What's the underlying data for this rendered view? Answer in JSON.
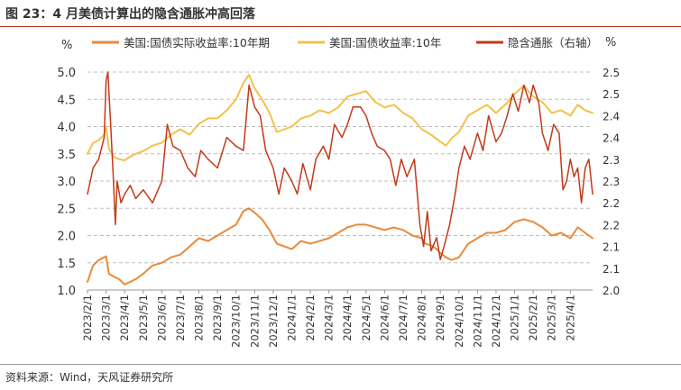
{
  "figure": {
    "title": "图 23：4 月美债计算出的隐含通胀冲高回落",
    "source": "资料来源：Wind，天风证券研究所"
  },
  "chart_data": {
    "type": "line",
    "left_axis": {
      "unit": "%",
      "range": [
        1.0,
        5.0
      ],
      "ticks": [
        "1.0",
        "1.5",
        "2.0",
        "2.5",
        "3.0",
        "3.5",
        "4.0",
        "4.5",
        "5.0"
      ]
    },
    "right_axis": {
      "unit": "%",
      "range": [
        2.0,
        2.5
      ],
      "ticks": [
        "2.0",
        "2.1",
        "2.1",
        "2.2",
        "2.2",
        "2.3",
        "2.3",
        "2.4",
        "2.4",
        "2.5",
        "2.5"
      ]
    },
    "x_range_months": [
      0,
      27.2
    ],
    "x_ticks": [
      {
        "t": 0,
        "label": "2023/2/1"
      },
      {
        "t": 1,
        "label": "2023/3/1"
      },
      {
        "t": 2,
        "label": "2023/4/1"
      },
      {
        "t": 3,
        "label": "2023/5/1"
      },
      {
        "t": 4,
        "label": "2023/6/1"
      },
      {
        "t": 5,
        "label": "2023/7/1"
      },
      {
        "t": 6,
        "label": "2023/8/1"
      },
      {
        "t": 7,
        "label": "2023/9/1"
      },
      {
        "t": 8,
        "label": "2023/10/1"
      },
      {
        "t": 9,
        "label": "2023/11/1"
      },
      {
        "t": 10,
        "label": "2023/12/1"
      },
      {
        "t": 11,
        "label": "2024/1/1"
      },
      {
        "t": 12,
        "label": "2024/2/1"
      },
      {
        "t": 13,
        "label": "2024/3/1"
      },
      {
        "t": 14,
        "label": "2024/4/1"
      },
      {
        "t": 15,
        "label": "2024/5/1"
      },
      {
        "t": 16,
        "label": "2024/6/1"
      },
      {
        "t": 17,
        "label": "2024/7/1"
      },
      {
        "t": 18,
        "label": "2024/8/1"
      },
      {
        "t": 19,
        "label": "2024/9/1"
      },
      {
        "t": 20,
        "label": "2024/10/1"
      },
      {
        "t": 21,
        "label": "2024/11/1"
      },
      {
        "t": 22,
        "label": "2024/12/1"
      },
      {
        "t": 23,
        "label": "2025/1/1"
      },
      {
        "t": 24,
        "label": "2025/2/1"
      },
      {
        "t": 25,
        "label": "2025/3/1"
      },
      {
        "t": 26,
        "label": "2025/4/1"
      }
    ],
    "grid": "horizontal dashed",
    "legend_position": "top",
    "series": [
      {
        "name": "美国:国债实际收益率:10年期",
        "axis": "left",
        "color": "#e88a3a",
        "width": 2,
        "points": [
          [
            0,
            1.15
          ],
          [
            0.3,
            1.45
          ],
          [
            0.6,
            1.55
          ],
          [
            0.9,
            1.6
          ],
          [
            1.0,
            1.62
          ],
          [
            1.15,
            1.3
          ],
          [
            1.4,
            1.25
          ],
          [
            1.7,
            1.2
          ],
          [
            2.0,
            1.1
          ],
          [
            2.3,
            1.15
          ],
          [
            2.6,
            1.2
          ],
          [
            3.0,
            1.3
          ],
          [
            3.5,
            1.45
          ],
          [
            4.0,
            1.5
          ],
          [
            4.5,
            1.6
          ],
          [
            5.0,
            1.65
          ],
          [
            5.5,
            1.8
          ],
          [
            6.0,
            1.95
          ],
          [
            6.5,
            1.9
          ],
          [
            7.0,
            2.0
          ],
          [
            7.5,
            2.1
          ],
          [
            8.0,
            2.2
          ],
          [
            8.4,
            2.45
          ],
          [
            8.7,
            2.5
          ],
          [
            9.0,
            2.42
          ],
          [
            9.4,
            2.3
          ],
          [
            9.8,
            2.1
          ],
          [
            10.2,
            1.85
          ],
          [
            10.6,
            1.8
          ],
          [
            11.0,
            1.75
          ],
          [
            11.5,
            1.9
          ],
          [
            12.0,
            1.85
          ],
          [
            12.5,
            1.9
          ],
          [
            13.0,
            1.95
          ],
          [
            13.5,
            2.05
          ],
          [
            14.0,
            2.15
          ],
          [
            14.5,
            2.2
          ],
          [
            15.0,
            2.2
          ],
          [
            15.5,
            2.15
          ],
          [
            16.0,
            2.1
          ],
          [
            16.5,
            2.15
          ],
          [
            17.0,
            2.1
          ],
          [
            17.5,
            2.0
          ],
          [
            18.0,
            1.95
          ],
          [
            18.2,
            1.85
          ],
          [
            18.5,
            1.82
          ],
          [
            18.8,
            1.75
          ],
          [
            19.0,
            1.68
          ],
          [
            19.3,
            1.6
          ],
          [
            19.6,
            1.55
          ],
          [
            20.0,
            1.6
          ],
          [
            20.5,
            1.85
          ],
          [
            21.0,
            1.95
          ],
          [
            21.5,
            2.05
          ],
          [
            22.0,
            2.05
          ],
          [
            22.5,
            2.1
          ],
          [
            23.0,
            2.25
          ],
          [
            23.5,
            2.3
          ],
          [
            24.0,
            2.25
          ],
          [
            24.5,
            2.15
          ],
          [
            25.0,
            2.0
          ],
          [
            25.5,
            2.05
          ],
          [
            26.0,
            1.95
          ],
          [
            26.4,
            2.15
          ],
          [
            26.8,
            2.05
          ],
          [
            27.2,
            1.95
          ]
        ]
      },
      {
        "name": "美国:国债收益率:10年",
        "axis": "left",
        "color": "#f2c24a",
        "width": 2,
        "points": [
          [
            0,
            3.5
          ],
          [
            0.3,
            3.7
          ],
          [
            0.6,
            3.75
          ],
          [
            0.9,
            3.85
          ],
          [
            1.0,
            4.0
          ],
          [
            1.15,
            3.6
          ],
          [
            1.4,
            3.45
          ],
          [
            1.7,
            3.4
          ],
          [
            2.0,
            3.38
          ],
          [
            2.3,
            3.45
          ],
          [
            2.6,
            3.5
          ],
          [
            3.0,
            3.55
          ],
          [
            3.5,
            3.65
          ],
          [
            4.0,
            3.7
          ],
          [
            4.5,
            3.85
          ],
          [
            5.0,
            3.95
          ],
          [
            5.5,
            3.85
          ],
          [
            6.0,
            4.05
          ],
          [
            6.5,
            4.15
          ],
          [
            7.0,
            4.15
          ],
          [
            7.5,
            4.3
          ],
          [
            8.0,
            4.5
          ],
          [
            8.4,
            4.8
          ],
          [
            8.7,
            4.95
          ],
          [
            9.0,
            4.7
          ],
          [
            9.4,
            4.5
          ],
          [
            9.8,
            4.25
          ],
          [
            10.2,
            3.9
          ],
          [
            10.6,
            3.95
          ],
          [
            11.0,
            4.0
          ],
          [
            11.5,
            4.15
          ],
          [
            12.0,
            4.2
          ],
          [
            12.5,
            4.3
          ],
          [
            13.0,
            4.25
          ],
          [
            13.5,
            4.35
          ],
          [
            14.0,
            4.55
          ],
          [
            14.5,
            4.6
          ],
          [
            15.0,
            4.65
          ],
          [
            15.5,
            4.45
          ],
          [
            16.0,
            4.35
          ],
          [
            16.5,
            4.4
          ],
          [
            17.0,
            4.25
          ],
          [
            17.5,
            4.15
          ],
          [
            18.0,
            3.95
          ],
          [
            18.5,
            3.85
          ],
          [
            19.0,
            3.72
          ],
          [
            19.3,
            3.65
          ],
          [
            19.6,
            3.78
          ],
          [
            20.0,
            3.9
          ],
          [
            20.5,
            4.2
          ],
          [
            21.0,
            4.3
          ],
          [
            21.5,
            4.4
          ],
          [
            22.0,
            4.25
          ],
          [
            22.5,
            4.4
          ],
          [
            23.0,
            4.6
          ],
          [
            23.5,
            4.75
          ],
          [
            24.0,
            4.55
          ],
          [
            24.5,
            4.45
          ],
          [
            25.0,
            4.25
          ],
          [
            25.5,
            4.3
          ],
          [
            26.0,
            4.2
          ],
          [
            26.4,
            4.4
          ],
          [
            26.8,
            4.3
          ],
          [
            27.2,
            4.25
          ]
        ]
      },
      {
        "name": "隐含通胀（右轴）",
        "axis": "right",
        "color": "#c23a1a",
        "width": 1.5,
        "points": [
          [
            0,
            2.22
          ],
          [
            0.3,
            2.28
          ],
          [
            0.6,
            2.3
          ],
          [
            0.9,
            2.35
          ],
          [
            1.0,
            2.48
          ],
          [
            1.1,
            2.5
          ],
          [
            1.25,
            2.38
          ],
          [
            1.4,
            2.25
          ],
          [
            1.5,
            2.15
          ],
          [
            1.6,
            2.25
          ],
          [
            1.8,
            2.2
          ],
          [
            2.0,
            2.22
          ],
          [
            2.3,
            2.24
          ],
          [
            2.6,
            2.21
          ],
          [
            3.0,
            2.23
          ],
          [
            3.5,
            2.2
          ],
          [
            4.0,
            2.25
          ],
          [
            4.3,
            2.38
          ],
          [
            4.6,
            2.33
          ],
          [
            5.0,
            2.32
          ],
          [
            5.4,
            2.28
          ],
          [
            5.8,
            2.26
          ],
          [
            6.1,
            2.32
          ],
          [
            6.5,
            2.3
          ],
          [
            7.0,
            2.28
          ],
          [
            7.5,
            2.35
          ],
          [
            8.0,
            2.33
          ],
          [
            8.4,
            2.32
          ],
          [
            8.7,
            2.47
          ],
          [
            9.0,
            2.42
          ],
          [
            9.3,
            2.4
          ],
          [
            9.6,
            2.32
          ],
          [
            10.0,
            2.28
          ],
          [
            10.3,
            2.22
          ],
          [
            10.6,
            2.28
          ],
          [
            11.0,
            2.25
          ],
          [
            11.3,
            2.22
          ],
          [
            11.6,
            2.29
          ],
          [
            12.0,
            2.23
          ],
          [
            12.3,
            2.3
          ],
          [
            12.7,
            2.33
          ],
          [
            13.0,
            2.3
          ],
          [
            13.3,
            2.38
          ],
          [
            13.7,
            2.35
          ],
          [
            14.0,
            2.38
          ],
          [
            14.3,
            2.42
          ],
          [
            14.7,
            2.42
          ],
          [
            15.0,
            2.4
          ],
          [
            15.3,
            2.36
          ],
          [
            15.6,
            2.33
          ],
          [
            16.0,
            2.32
          ],
          [
            16.3,
            2.3
          ],
          [
            16.6,
            2.24
          ],
          [
            16.9,
            2.3
          ],
          [
            17.2,
            2.26
          ],
          [
            17.6,
            2.3
          ],
          [
            17.9,
            2.15
          ],
          [
            18.1,
            2.1
          ],
          [
            18.3,
            2.18
          ],
          [
            18.5,
            2.09
          ],
          [
            18.8,
            2.12
          ],
          [
            19.0,
            2.07
          ],
          [
            19.2,
            2.1
          ],
          [
            19.5,
            2.15
          ],
          [
            19.8,
            2.22
          ],
          [
            20.0,
            2.28
          ],
          [
            20.3,
            2.33
          ],
          [
            20.6,
            2.3
          ],
          [
            21.0,
            2.36
          ],
          [
            21.3,
            2.32
          ],
          [
            21.6,
            2.4
          ],
          [
            22.0,
            2.34
          ],
          [
            22.3,
            2.36
          ],
          [
            22.6,
            2.4
          ],
          [
            22.9,
            2.45
          ],
          [
            23.2,
            2.41
          ],
          [
            23.5,
            2.47
          ],
          [
            23.8,
            2.43
          ],
          [
            24.0,
            2.47
          ],
          [
            24.3,
            2.43
          ],
          [
            24.5,
            2.36
          ],
          [
            24.8,
            2.32
          ],
          [
            25.1,
            2.38
          ],
          [
            25.4,
            2.36
          ],
          [
            25.6,
            2.23
          ],
          [
            25.8,
            2.25
          ],
          [
            26.0,
            2.3
          ],
          [
            26.2,
            2.26
          ],
          [
            26.4,
            2.28
          ],
          [
            26.6,
            2.2
          ],
          [
            26.8,
            2.28
          ],
          [
            27.0,
            2.3
          ],
          [
            27.2,
            2.22
          ]
        ]
      }
    ]
  }
}
